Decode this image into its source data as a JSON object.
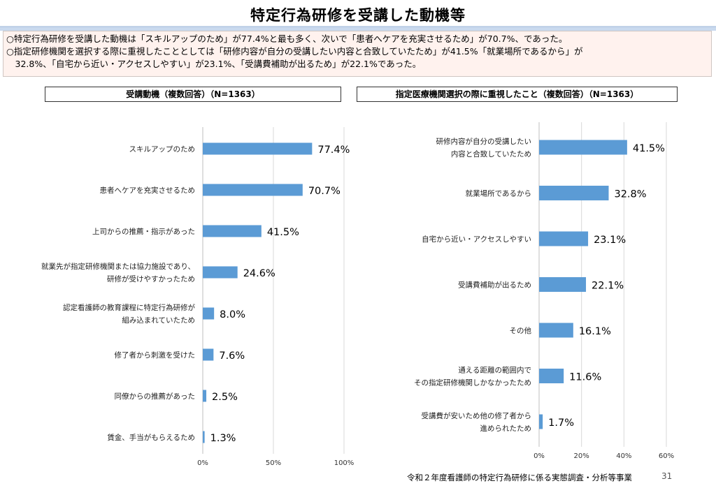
{
  "title": "特定行為研修を受講した動機等",
  "summary": {
    "lines": [
      "○特定行為研修を受講した動機は「スキルアップのため」が77.4%と最も多く、次いで「患者へケアを充実させるため」が70.7%、であった。",
      "○指定研修機関を選択する際に重視したこととしては「研修内容が自分の受講したい内容と合致していたため」が41.5%「就業場所であるから」が",
      "　32.8%、「自宅から近い・アクセスしやすい」が23.1%、「受講費補助が出るため」が22.1%であった。"
    ]
  },
  "footnote": "令和２年度看護師の特定行為研修に係る実態調査・分析等事業",
  "page_number": "31",
  "colors": {
    "bar": "#5b9bd5",
    "grid": "#d9d9d9",
    "title_shadow": "#b8cde6"
  },
  "chart_data": [
    {
      "type": "bar",
      "orientation": "horizontal",
      "title": "受講動機（複数回答）（N=1363）",
      "categories": [
        [
          "スキルアップのため"
        ],
        [
          "患者へケアを充実させるため"
        ],
        [
          "上司からの推薦・指示があった"
        ],
        [
          "就業先が指定研修機関または協力施設であり、",
          "研修が受けやすかったため"
        ],
        [
          "認定看護師の教育課程に特定行為研修が",
          "組み込まれていたため"
        ],
        [
          "修了者から刺激を受けた"
        ],
        [
          "同僚からの推薦があった"
        ],
        [
          "賃金、手当がもらえるため"
        ]
      ],
      "values": [
        77.4,
        70.7,
        41.5,
        24.6,
        8.0,
        7.6,
        2.5,
        1.3
      ],
      "value_labels": [
        "77.4%",
        "70.7%",
        "41.5%",
        "24.6%",
        "8.0%",
        "7.6%",
        "2.5%",
        "1.3%"
      ],
      "xlim": [
        0,
        100
      ],
      "xticks": [
        0,
        50,
        100
      ],
      "xtick_labels": [
        "0%",
        "50%",
        "100%"
      ],
      "grid": true
    },
    {
      "type": "bar",
      "orientation": "horizontal",
      "title": "指定医療機関選択の際に重視したこと（複数回答）（N=1363）",
      "categories": [
        [
          "研修内容が自分の受講したい",
          "内容と合致していたため"
        ],
        [
          "就業場所であるから"
        ],
        [
          "自宅から近い・アクセスしやすい"
        ],
        [
          "受講費補助が出るため"
        ],
        [
          "その他"
        ],
        [
          "通える距離の範囲内で",
          "その指定研修機関しかなかったため"
        ],
        [
          "受講費が安いため他の修了者から",
          "進められたため"
        ]
      ],
      "values": [
        41.5,
        32.8,
        23.1,
        22.1,
        16.1,
        11.6,
        1.7
      ],
      "value_labels": [
        "41.5%",
        "32.8%",
        "23.1%",
        "22.1%",
        "16.1%",
        "11.6%",
        "1.7%"
      ],
      "xlim": [
        0,
        60
      ],
      "xticks": [
        0,
        20,
        40,
        60
      ],
      "xtick_labels": [
        "0%",
        "20%",
        "40%",
        "60%"
      ],
      "grid": true
    }
  ]
}
